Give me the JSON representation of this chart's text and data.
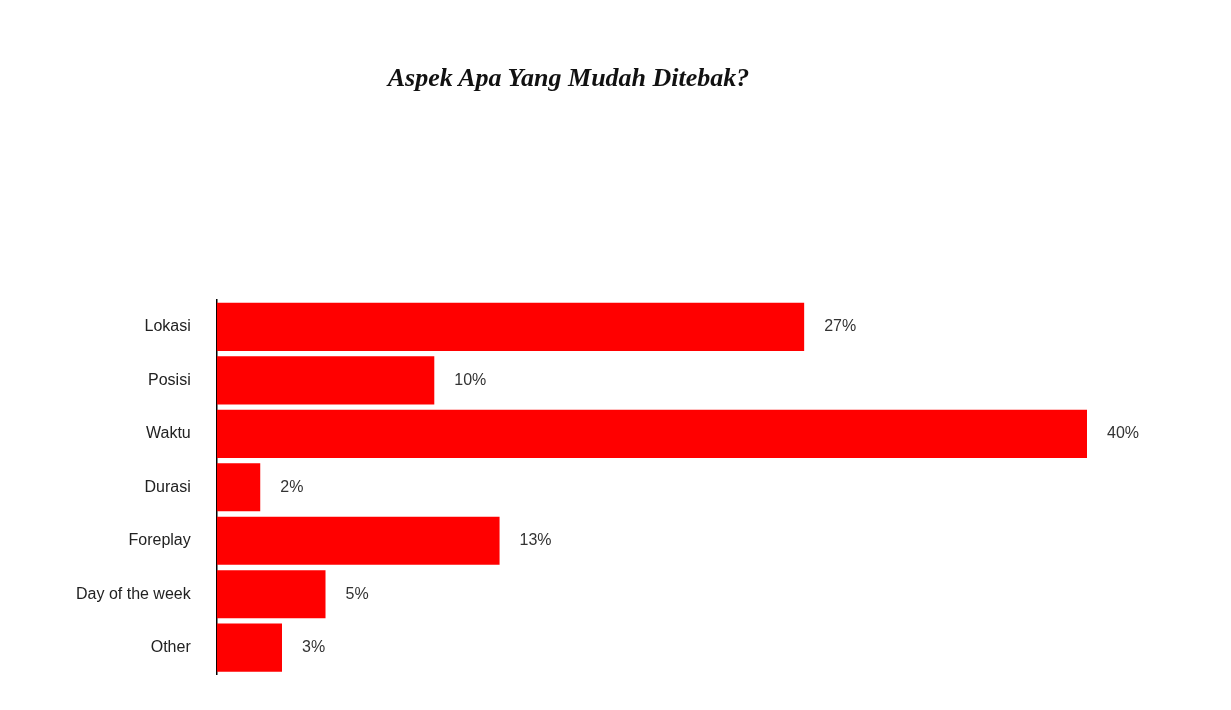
{
  "chart_data": {
    "type": "bar",
    "orientation": "horizontal",
    "title": "Aspek Apa Yang Mudah Ditebak?",
    "categories": [
      "Lokasi",
      "Posisi",
      "Waktu",
      "Durasi",
      "Foreplay",
      "Day of the week",
      "Other"
    ],
    "values": [
      27,
      10,
      40,
      2,
      13,
      5,
      3
    ],
    "value_labels": [
      "27%",
      "10%",
      "40%",
      "2%",
      "13%",
      "5%",
      "3%"
    ],
    "color": "#ff0000",
    "legend": false
  }
}
